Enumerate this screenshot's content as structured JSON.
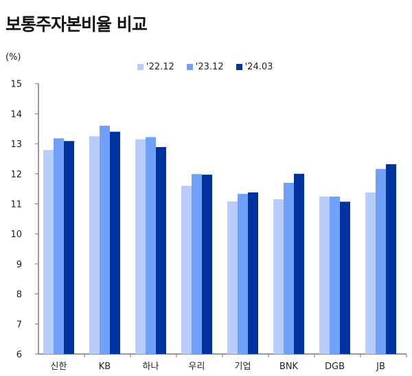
{
  "chart_data": {
    "type": "bar",
    "title": "보통주자본비율 비교",
    "ylabel": "(%)",
    "xlabel": "",
    "ylim": [
      6,
      15
    ],
    "yticks": [
      6,
      7,
      8,
      9,
      10,
      11,
      12,
      13,
      14,
      15
    ],
    "grid": false,
    "legend": "top-center",
    "categories": [
      "신한",
      "KB",
      "하나",
      "우리",
      "기업",
      "BNK",
      "DGB",
      "JB"
    ],
    "series": [
      {
        "name": "'22.12",
        "color": "#b8cdfc",
        "values": [
          12.79,
          13.25,
          13.15,
          11.6,
          11.08,
          11.15,
          11.24,
          11.38
        ]
      },
      {
        "name": "'23.12",
        "color": "#70a0f8",
        "values": [
          13.18,
          13.6,
          13.22,
          11.99,
          11.33,
          11.7,
          11.24,
          12.16
        ]
      },
      {
        "name": "'24.03",
        "color": "#0033a0",
        "values": [
          13.09,
          13.4,
          12.89,
          11.97,
          11.38,
          12.0,
          11.07,
          12.32
        ]
      }
    ]
  }
}
